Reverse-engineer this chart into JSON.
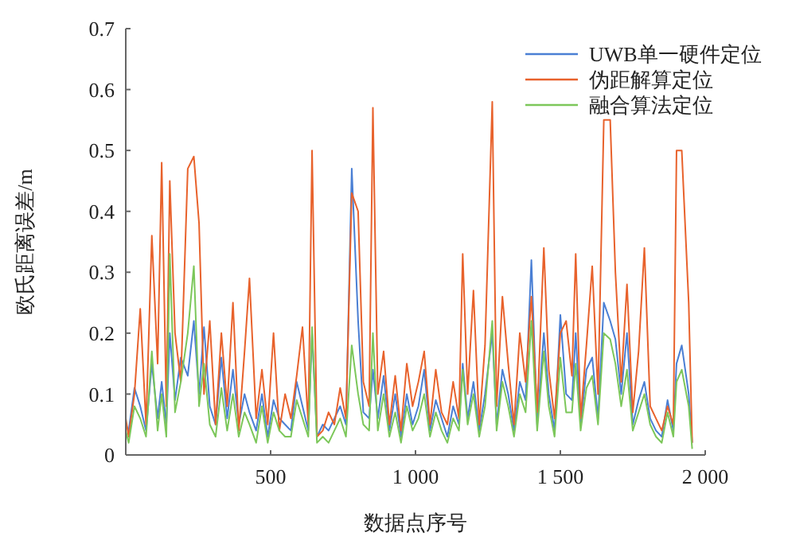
{
  "chart_data": {
    "type": "line",
    "xlabel": "数据点序号",
    "ylabel": "欧氏距离误差/m",
    "xlim": [
      0,
      2000
    ],
    "xticks": [
      500,
      {
        "value": 1000,
        "label": "1 000"
      },
      {
        "value": 1500,
        "label": "1 500"
      },
      {
        "value": 2000,
        "label": "2 000"
      }
    ],
    "ylim": [
      0,
      0.7
    ],
    "yticks": [
      0,
      0.1,
      0.2,
      0.3,
      0.4,
      0.5,
      0.6,
      0.7
    ],
    "grid": false,
    "legend": "top right",
    "marker": "none",
    "line_style": "solid",
    "x": [
      0,
      10,
      30,
      50,
      70,
      90,
      110,
      124,
      140,
      152,
      170,
      190,
      214,
      235,
      253,
      270,
      290,
      310,
      330,
      350,
      370,
      390,
      410,
      427,
      450,
      470,
      490,
      510,
      530,
      550,
      570,
      590,
      610,
      630,
      643,
      660,
      680,
      700,
      720,
      740,
      760,
      780,
      802,
      820,
      840,
      853,
      870,
      890,
      910,
      930,
      950,
      970,
      990,
      1010,
      1030,
      1050,
      1070,
      1090,
      1110,
      1130,
      1150,
      1163,
      1180,
      1200,
      1220,
      1240,
      1265,
      1280,
      1300,
      1320,
      1340,
      1360,
      1380,
      1400,
      1420,
      1443,
      1460,
      1480,
      1500,
      1520,
      1540,
      1553,
      1570,
      1590,
      1610,
      1630,
      1650,
      1672,
      1690,
      1710,
      1730,
      1750,
      1770,
      1790,
      1810,
      1830,
      1850,
      1870,
      1890,
      1901,
      1919,
      1943,
      1955
    ],
    "series": [
      {
        "name": "UWB单一硬件定位",
        "color": "#4a7fd4",
        "values": [
          0.05,
          0.04,
          0.11,
          0.08,
          0.04,
          0.15,
          0.06,
          0.12,
          0.05,
          0.2,
          0.09,
          0.16,
          0.13,
          0.22,
          0.1,
          0.21,
          0.08,
          0.05,
          0.16,
          0.06,
          0.14,
          0.05,
          0.1,
          0.07,
          0.04,
          0.1,
          0.03,
          0.09,
          0.06,
          0.05,
          0.04,
          0.12,
          0.08,
          0.04,
          0.2,
          0.03,
          0.05,
          0.04,
          0.06,
          0.08,
          0.05,
          0.47,
          0.22,
          0.07,
          0.06,
          0.14,
          0.06,
          0.13,
          0.04,
          0.1,
          0.03,
          0.1,
          0.05,
          0.08,
          0.14,
          0.04,
          0.09,
          0.06,
          0.03,
          0.08,
          0.05,
          0.15,
          0.06,
          0.12,
          0.04,
          0.1,
          0.2,
          0.05,
          0.14,
          0.1,
          0.04,
          0.12,
          0.09,
          0.32,
          0.05,
          0.2,
          0.1,
          0.04,
          0.23,
          0.1,
          0.09,
          0.2,
          0.05,
          0.14,
          0.16,
          0.06,
          0.25,
          0.22,
          0.19,
          0.1,
          0.2,
          0.05,
          0.09,
          0.12,
          0.06,
          0.04,
          0.03,
          0.09,
          0.04,
          0.15,
          0.18,
          0.1,
          0.02
        ]
      },
      {
        "name": "伪距解算定位",
        "color": "#e8622c",
        "values": [
          0.06,
          0.03,
          0.1,
          0.24,
          0.05,
          0.36,
          0.15,
          0.48,
          0.08,
          0.45,
          0.2,
          0.12,
          0.47,
          0.49,
          0.38,
          0.1,
          0.22,
          0.05,
          0.2,
          0.08,
          0.25,
          0.04,
          0.17,
          0.29,
          0.06,
          0.14,
          0.05,
          0.2,
          0.04,
          0.1,
          0.06,
          0.13,
          0.21,
          0.05,
          0.5,
          0.03,
          0.04,
          0.07,
          0.05,
          0.11,
          0.06,
          0.43,
          0.4,
          0.12,
          0.08,
          0.57,
          0.1,
          0.17,
          0.05,
          0.13,
          0.04,
          0.15,
          0.08,
          0.12,
          0.17,
          0.05,
          0.14,
          0.07,
          0.05,
          0.12,
          0.06,
          0.33,
          0.1,
          0.27,
          0.05,
          0.18,
          0.58,
          0.08,
          0.26,
          0.15,
          0.05,
          0.2,
          0.12,
          0.26,
          0.07,
          0.34,
          0.14,
          0.06,
          0.2,
          0.22,
          0.13,
          0.33,
          0.06,
          0.18,
          0.31,
          0.1,
          0.55,
          0.55,
          0.3,
          0.12,
          0.28,
          0.07,
          0.17,
          0.34,
          0.08,
          0.06,
          0.04,
          0.08,
          0.05,
          0.5,
          0.5,
          0.25,
          0.02
        ]
      },
      {
        "name": "融合算法定位",
        "color": "#7cc75a",
        "values": [
          0.04,
          0.02,
          0.08,
          0.06,
          0.03,
          0.17,
          0.04,
          0.1,
          0.03,
          0.33,
          0.07,
          0.12,
          0.2,
          0.31,
          0.08,
          0.15,
          0.05,
          0.03,
          0.11,
          0.04,
          0.1,
          0.03,
          0.07,
          0.05,
          0.02,
          0.08,
          0.02,
          0.07,
          0.04,
          0.03,
          0.03,
          0.09,
          0.06,
          0.03,
          0.21,
          0.02,
          0.03,
          0.02,
          0.04,
          0.06,
          0.03,
          0.18,
          0.1,
          0.05,
          0.04,
          0.2,
          0.04,
          0.1,
          0.03,
          0.07,
          0.02,
          0.08,
          0.04,
          0.06,
          0.1,
          0.03,
          0.07,
          0.04,
          0.02,
          0.06,
          0.04,
          0.14,
          0.05,
          0.1,
          0.03,
          0.08,
          0.22,
          0.04,
          0.12,
          0.08,
          0.03,
          0.1,
          0.07,
          0.22,
          0.04,
          0.17,
          0.08,
          0.03,
          0.16,
          0.07,
          0.07,
          0.15,
          0.04,
          0.11,
          0.13,
          0.05,
          0.2,
          0.19,
          0.15,
          0.08,
          0.14,
          0.04,
          0.07,
          0.1,
          0.05,
          0.03,
          0.02,
          0.07,
          0.03,
          0.12,
          0.14,
          0.08,
          0.01
        ]
      }
    ]
  }
}
